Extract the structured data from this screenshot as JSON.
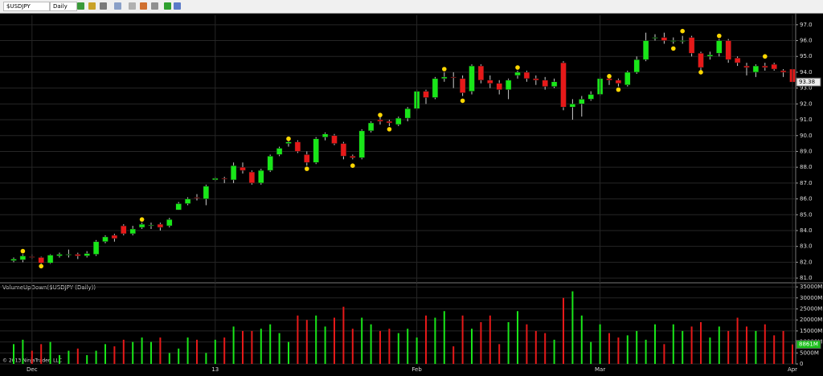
{
  "toolbar": {
    "instrument": "$USDJPY",
    "interval": "Daily"
  },
  "footer": "© 2013 NinjaTrader, LLC",
  "chart_data": [
    {
      "type": "candlestick",
      "up_color": "#19e619",
      "down_color": "#e61919",
      "marker_color": "#ffd700",
      "open": [
        82.1,
        82.15,
        82.35,
        82.3,
        81.95,
        82.4,
        82.45,
        82.5,
        82.4,
        82.5,
        83.3,
        83.7,
        84.3,
        83.8,
        84.2,
        84.35,
        84.4,
        84.3,
        85.3,
        85.7,
        86.1,
        86.0,
        87.2,
        87.3,
        87.2,
        88.0,
        87.7,
        87.0,
        87.8,
        88.8,
        89.5,
        89.6,
        88.8,
        88.3,
        89.9,
        90.0,
        89.5,
        88.7,
        88.6,
        90.3,
        91.0,
        90.9,
        90.7,
        91.1,
        91.7,
        92.8,
        92.4,
        93.6,
        93.7,
        93.6,
        92.8,
        94.4,
        93.5,
        93.3,
        92.9,
        93.8,
        94.0,
        93.6,
        93.5,
        93.1,
        94.6,
        91.8,
        92.0,
        92.3,
        92.6,
        93.6,
        93.5,
        93.2,
        94.0,
        94.8,
        96.2,
        96.2,
        96.0,
        96.0,
        96.2,
        95.2,
        95.0,
        95.2,
        96.0,
        94.9,
        94.4,
        94.0,
        94.4,
        94.5,
        94.1,
        94.2
      ],
      "high": [
        82.3,
        82.5,
        82.5,
        82.35,
        82.5,
        82.6,
        82.8,
        82.6,
        82.7,
        83.4,
        83.7,
        83.8,
        84.4,
        84.3,
        84.5,
        84.5,
        84.5,
        84.8,
        85.8,
        86.1,
        86.3,
        86.9,
        87.4,
        87.4,
        88.3,
        88.3,
        87.8,
        87.9,
        88.8,
        89.3,
        89.7,
        89.7,
        89.0,
        89.9,
        90.2,
        90.1,
        89.6,
        88.8,
        90.4,
        90.9,
        91.2,
        91.0,
        91.2,
        91.8,
        92.9,
        92.9,
        93.7,
        94.0,
        94.0,
        93.8,
        94.5,
        94.5,
        93.8,
        93.5,
        93.6,
        94.1,
        94.1,
        93.8,
        93.7,
        93.6,
        94.7,
        92.3,
        92.5,
        92.8,
        93.7,
        93.8,
        93.6,
        94.1,
        95.0,
        96.5,
        96.4,
        96.5,
        96.2,
        96.3,
        96.3,
        95.3,
        95.3,
        96.1,
        96.1,
        95.0,
        94.6,
        94.5,
        94.6,
        94.6,
        94.2,
        94.4
      ],
      "low": [
        82.0,
        82.0,
        82.2,
        81.9,
        81.9,
        82.3,
        82.3,
        82.2,
        82.3,
        82.4,
        83.2,
        83.3,
        83.7,
        83.7,
        84.1,
        84.1,
        84.0,
        84.2,
        85.3,
        85.6,
        85.9,
        85.6,
        87.1,
        87.0,
        87.0,
        87.6,
        86.9,
        86.9,
        87.7,
        88.7,
        89.3,
        88.9,
        88.1,
        88.2,
        89.7,
        89.4,
        88.5,
        88.5,
        88.5,
        90.2,
        90.7,
        90.6,
        90.6,
        90.9,
        91.6,
        92.0,
        92.3,
        93.4,
        93.0,
        92.5,
        92.6,
        93.3,
        93.0,
        92.6,
        92.3,
        93.6,
        93.4,
        93.2,
        92.9,
        93.0,
        91.6,
        91.0,
        91.2,
        92.2,
        92.5,
        93.2,
        93.1,
        93.1,
        93.9,
        94.7,
        96.0,
        95.8,
        95.8,
        95.8,
        95.0,
        94.1,
        94.8,
        95.0,
        94.6,
        94.4,
        93.8,
        93.7,
        94.1,
        94.1,
        93.7,
        93.3
      ],
      "close": [
        82.2,
        82.4,
        82.3,
        81.95,
        82.45,
        82.5,
        82.5,
        82.4,
        82.55,
        83.3,
        83.6,
        83.5,
        83.8,
        84.1,
        84.4,
        84.35,
        84.2,
        84.7,
        85.7,
        86.0,
        86.05,
        86.8,
        87.3,
        87.25,
        88.1,
        87.8,
        87.0,
        87.8,
        88.7,
        89.2,
        89.6,
        89.0,
        88.3,
        89.8,
        90.1,
        89.5,
        88.7,
        88.6,
        90.3,
        90.8,
        90.9,
        90.8,
        91.1,
        91.7,
        92.8,
        92.4,
        93.6,
        93.7,
        93.65,
        92.7,
        94.4,
        93.5,
        93.3,
        92.9,
        93.5,
        94.0,
        93.6,
        93.5,
        93.1,
        93.4,
        91.8,
        92.0,
        92.3,
        92.6,
        93.6,
        93.5,
        93.3,
        94.0,
        94.8,
        96.0,
        96.2,
        96.0,
        96.0,
        96.0,
        95.2,
        94.3,
        95.1,
        96.0,
        94.8,
        94.6,
        94.3,
        94.4,
        94.3,
        94.2,
        94.0,
        93.38
      ],
      "fractals": [
        null,
        82.7,
        null,
        81.75,
        null,
        null,
        null,
        null,
        null,
        null,
        null,
        null,
        null,
        null,
        84.7,
        null,
        null,
        null,
        null,
        null,
        null,
        null,
        null,
        null,
        null,
        null,
        null,
        null,
        null,
        null,
        89.8,
        null,
        87.9,
        null,
        null,
        null,
        null,
        88.1,
        null,
        null,
        91.3,
        90.4,
        null,
        null,
        null,
        null,
        null,
        94.2,
        null,
        92.2,
        null,
        null,
        null,
        null,
        null,
        94.3,
        null,
        null,
        null,
        null,
        null,
        null,
        null,
        null,
        null,
        93.75,
        92.9,
        null,
        null,
        null,
        null,
        null,
        95.5,
        96.6,
        null,
        94.0,
        null,
        96.3,
        null,
        null,
        null,
        null,
        95.0,
        null,
        null,
        null
      ],
      "last_label": "93.38",
      "ylim": [
        80.7,
        97.6
      ],
      "yticks": [
        {
          "value": 81,
          "label": "81.0"
        },
        {
          "value": 82,
          "label": "82.0"
        },
        {
          "value": 83,
          "label": "83.0"
        },
        {
          "value": 84,
          "label": "84.0"
        },
        {
          "value": 85,
          "label": "85.0"
        },
        {
          "value": 86,
          "label": "86.0"
        },
        {
          "value": 87,
          "label": "87.0"
        },
        {
          "value": 88,
          "label": "88.0"
        },
        {
          "value": 89,
          "label": "89.0"
        },
        {
          "value": 90,
          "label": "90.0"
        },
        {
          "value": 91,
          "label": "91.0"
        },
        {
          "value": 92,
          "label": "92.0"
        },
        {
          "value": 93,
          "label": "93.0"
        },
        {
          "value": 94,
          "label": "94.0"
        },
        {
          "value": 95,
          "label": "95.0"
        },
        {
          "value": 96,
          "label": "96.0"
        },
        {
          "value": 97,
          "label": "97.0"
        }
      ],
      "grid": true
    },
    {
      "type": "bar",
      "title": "VolumeUpDown($USDJPY (Daily))",
      "categories": [
        null,
        null,
        "Dec",
        null,
        null,
        null,
        null,
        null,
        null,
        null,
        null,
        null,
        null,
        null,
        null,
        null,
        null,
        null,
        null,
        null,
        null,
        null,
        "13",
        null,
        null,
        null,
        null,
        null,
        null,
        null,
        null,
        null,
        null,
        null,
        null,
        null,
        null,
        null,
        null,
        null,
        null,
        null,
        null,
        null,
        "Feb",
        null,
        null,
        null,
        null,
        null,
        null,
        null,
        null,
        null,
        null,
        null,
        null,
        null,
        null,
        null,
        null,
        null,
        null,
        null,
        "Mar",
        null,
        null,
        null,
        null,
        null,
        null,
        null,
        null,
        null,
        null,
        null,
        null,
        null,
        null,
        null,
        null,
        null,
        null,
        null,
        null,
        "Apr"
      ],
      "values": [
        9000,
        11000,
        6000,
        9000,
        10000,
        4000,
        6000,
        7000,
        4000,
        6000,
        9000,
        8000,
        11000,
        10000,
        12000,
        10000,
        12000,
        5000,
        7000,
        12000,
        11000,
        5000,
        11000,
        12000,
        17000,
        15000,
        15000,
        16000,
        18000,
        14000,
        10000,
        22000,
        20000,
        22000,
        17000,
        21000,
        26000,
        16000,
        21000,
        18000,
        15000,
        16000,
        14000,
        16000,
        12000,
        22000,
        21000,
        24000,
        8000,
        22000,
        16000,
        19000,
        22000,
        9000,
        19000,
        24000,
        18000,
        15000,
        14000,
        11000,
        30000,
        33000,
        22000,
        10000,
        18000,
        14000,
        12000,
        13000,
        15000,
        11000,
        18000,
        9000,
        18000,
        15000,
        17000,
        19000,
        12000,
        17000,
        15000,
        21000,
        17000,
        15000,
        18000,
        13000,
        15000,
        8861
      ],
      "last_label": "8861M",
      "ylim": [
        0,
        36500
      ],
      "yticks": [
        0,
        {
          "value": 5000,
          "label": "5000M"
        },
        {
          "value": 10000,
          "label": "10000M"
        },
        {
          "value": 15000,
          "label": "15000M"
        },
        {
          "value": 20000,
          "label": "20000M"
        },
        {
          "value": 25000,
          "label": "25000M"
        },
        {
          "value": 30000,
          "label": "30000M"
        },
        {
          "value": 35000,
          "label": "35000M"
        }
      ],
      "grid": true
    }
  ]
}
